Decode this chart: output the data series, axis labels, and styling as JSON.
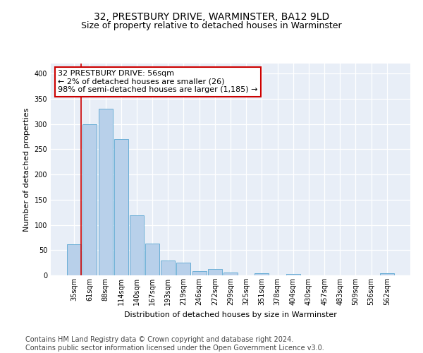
{
  "title": "32, PRESTBURY DRIVE, WARMINSTER, BA12 9LD",
  "subtitle": "Size of property relative to detached houses in Warminster",
  "xlabel": "Distribution of detached houses by size in Warminster",
  "ylabel": "Number of detached properties",
  "bar_labels": [
    "35sqm",
    "61sqm",
    "88sqm",
    "114sqm",
    "140sqm",
    "167sqm",
    "193sqm",
    "219sqm",
    "246sqm",
    "272sqm",
    "299sqm",
    "325sqm",
    "351sqm",
    "378sqm",
    "404sqm",
    "430sqm",
    "457sqm",
    "483sqm",
    "509sqm",
    "536sqm",
    "562sqm"
  ],
  "bar_values": [
    62,
    300,
    330,
    270,
    119,
    63,
    29,
    25,
    8,
    12,
    5,
    0,
    4,
    0,
    3,
    0,
    0,
    0,
    0,
    0,
    4
  ],
  "bar_color": "#b8d0ea",
  "bar_edge_color": "#6aaed6",
  "annotation_box_text": "32 PRESTBURY DRIVE: 56sqm\n← 2% of detached houses are smaller (26)\n98% of semi-detached houses are larger (1,185) →",
  "annotation_box_color": "#ffffff",
  "annotation_box_edge_color": "#cc0000",
  "vline_color": "#cc0000",
  "ylim": [
    0,
    420
  ],
  "yticks": [
    0,
    50,
    100,
    150,
    200,
    250,
    300,
    350,
    400
  ],
  "footer_line1": "Contains HM Land Registry data © Crown copyright and database right 2024.",
  "footer_line2": "Contains public sector information licensed under the Open Government Licence v3.0.",
  "background_color": "#e8eef7",
  "grid_color": "#ffffff",
  "title_fontsize": 10,
  "subtitle_fontsize": 9,
  "axis_label_fontsize": 8,
  "tick_fontsize": 7,
  "annotation_fontsize": 8,
  "footer_fontsize": 7
}
